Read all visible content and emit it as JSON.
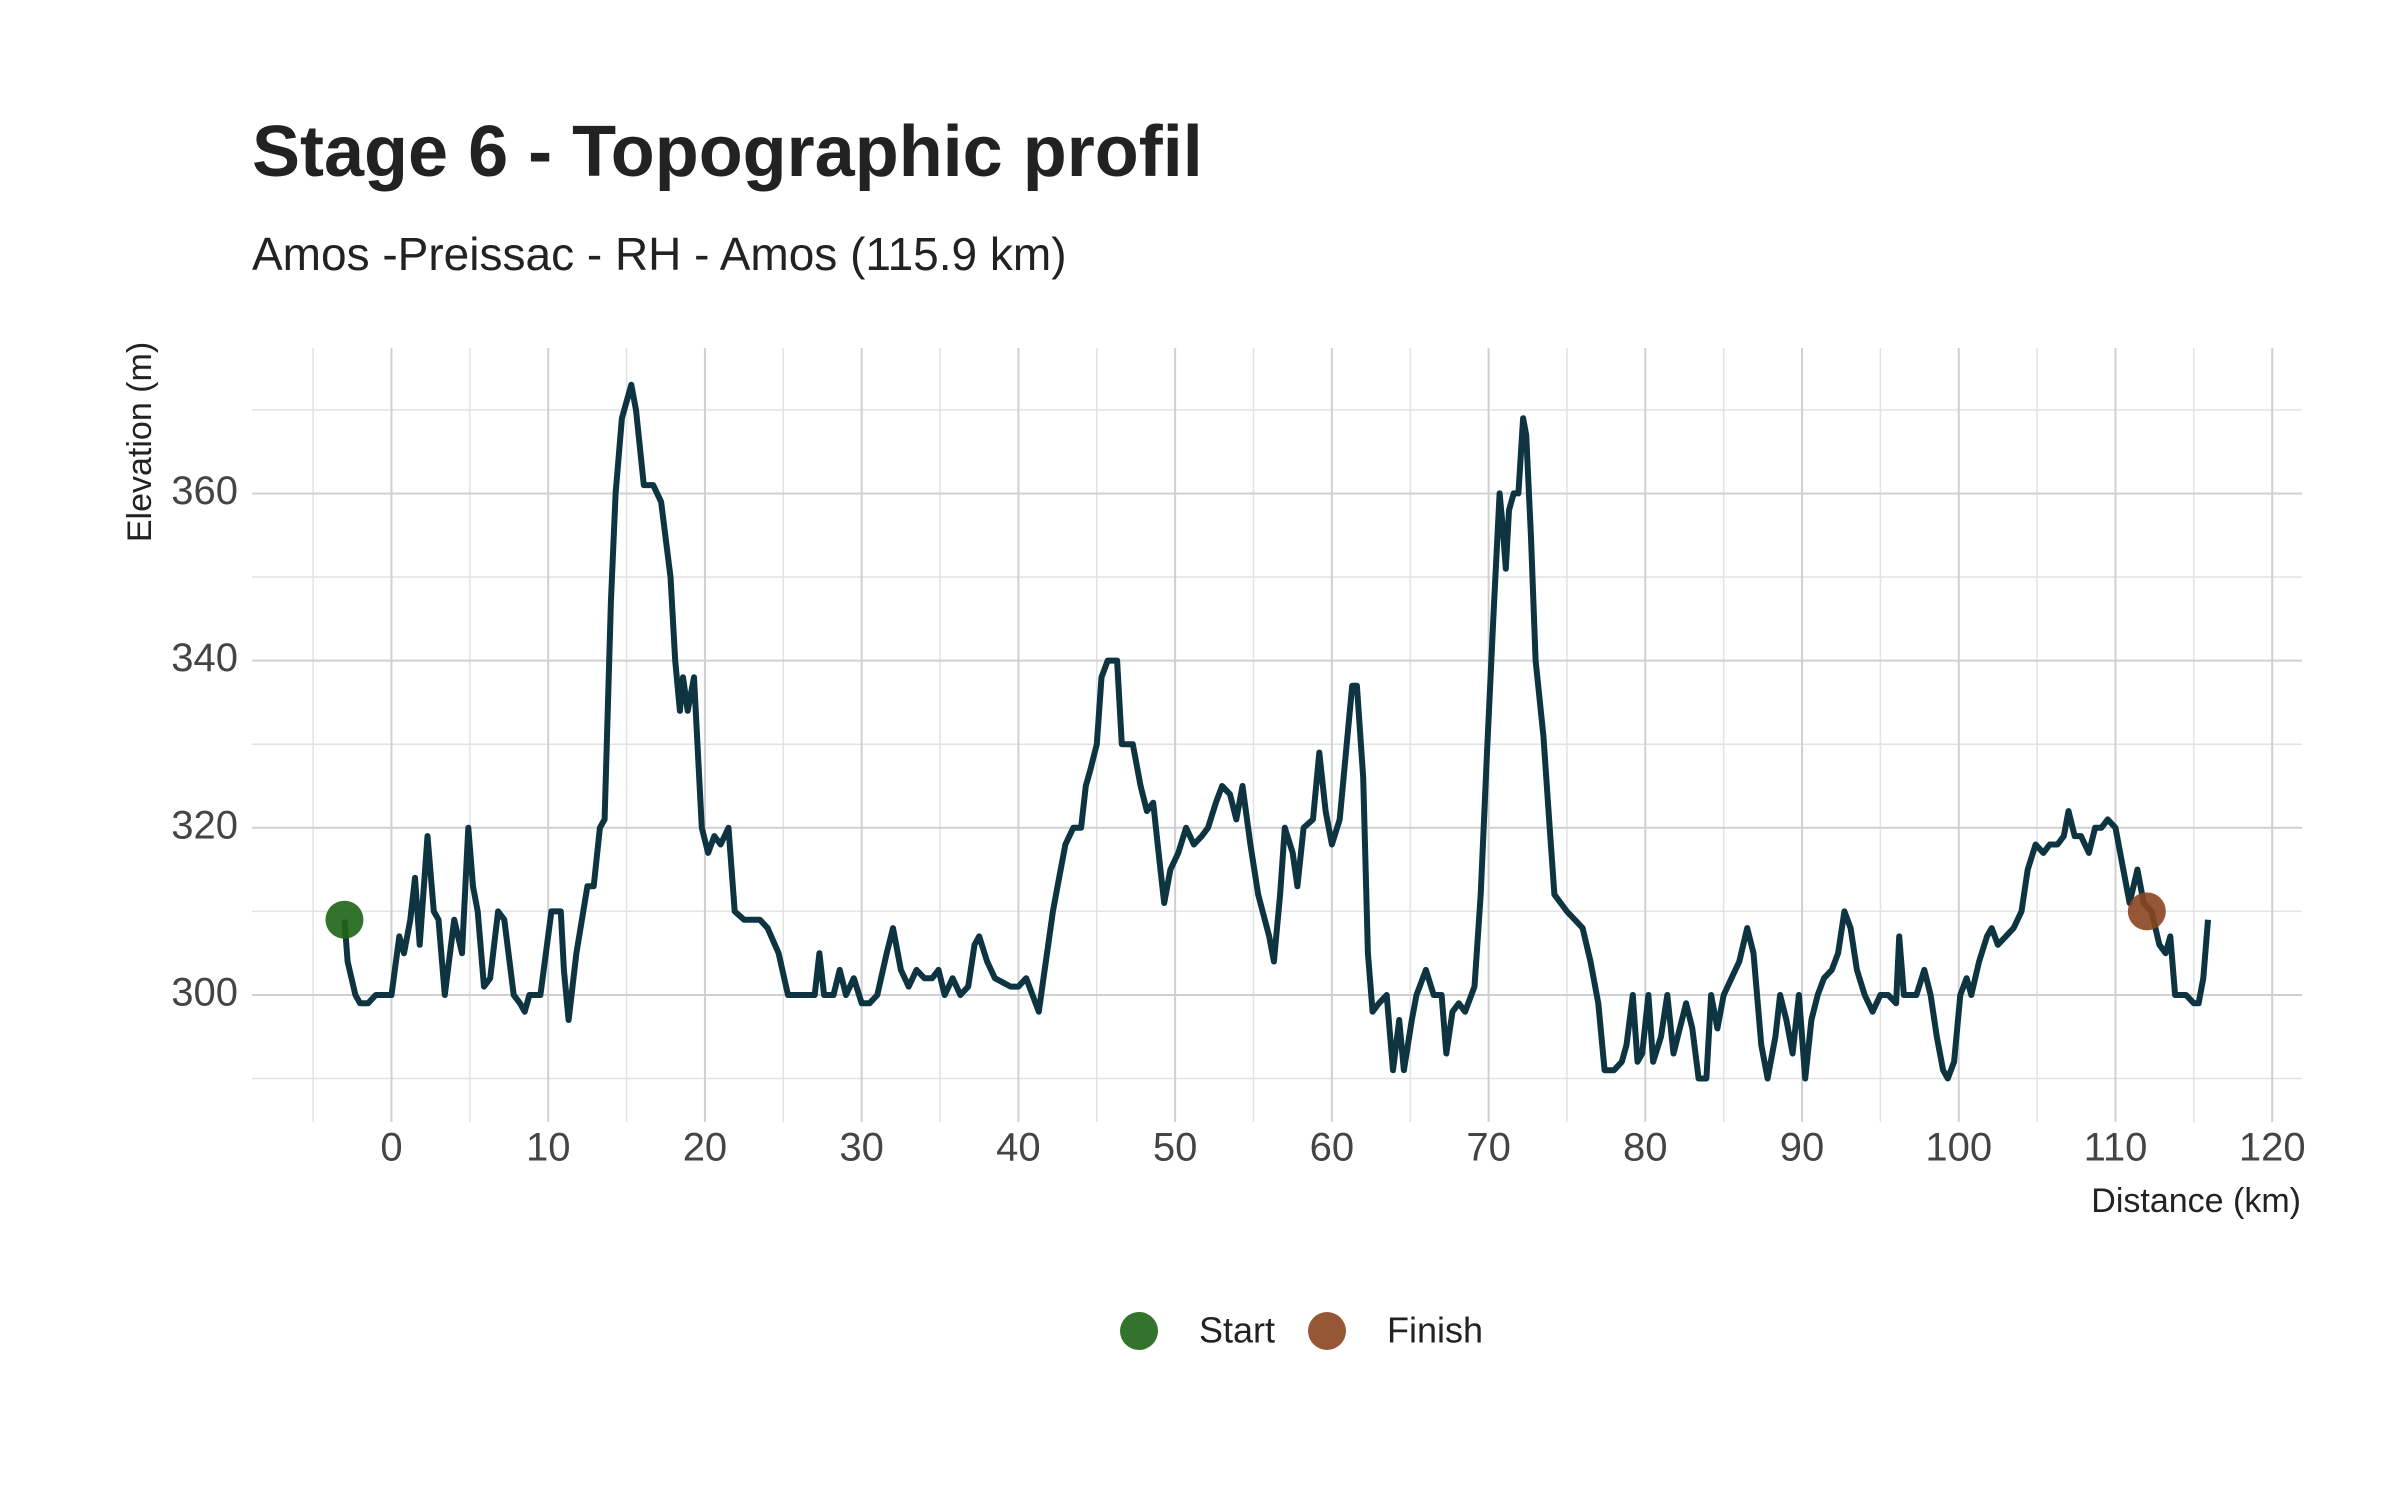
{
  "chart_data": {
    "type": "line",
    "title": "Stage 6 - Topographic profil",
    "subtitle": "Amos -Preissac - RH - Amos (115.9 km)",
    "x_label": "Distance (km)",
    "y_label": "Elevation (m)",
    "xlim": [
      -8.9,
      121.9
    ],
    "ylim": [
      284.8,
      377.4
    ],
    "xticks": [
      0,
      10,
      20,
      30,
      40,
      50,
      60,
      70,
      80,
      90,
      100,
      110,
      120
    ],
    "yticks": [
      300,
      320,
      340,
      360
    ],
    "xminor": [
      -5,
      5,
      15,
      25,
      35,
      45,
      55,
      65,
      75,
      85,
      95,
      105,
      115
    ],
    "yminor": [
      290,
      310,
      330,
      350,
      370
    ],
    "grid": true,
    "legend_position": "bottom",
    "x": [
      -3,
      -2.8,
      -2.3,
      -2,
      -1.5,
      -1,
      0,
      0.5,
      0.8,
      1.2,
      1.5,
      1.8,
      2.3,
      2.7,
      3,
      3.4,
      4,
      4.5,
      4.9,
      5.2,
      5.5,
      5.9,
      6.3,
      6.8,
      7.2,
      7.8,
      8.2,
      8.5,
      8.8,
      9.5,
      10.2,
      10.8,
      11,
      11.3,
      11.8,
      12.5,
      12.9,
      13.3,
      13.6,
      14,
      14.3,
      14.7,
      15,
      15.3,
      15.6,
      16.1,
      16.7,
      17.2,
      17.8,
      18.1,
      18.4,
      18.6,
      18.9,
      19.3,
      19.8,
      20.2,
      20.6,
      21,
      21.5,
      21.9,
      22.5,
      23.5,
      24,
      24.7,
      25.3,
      26.2,
      27,
      27.3,
      27.6,
      28.2,
      28.6,
      29,
      29.5,
      30,
      30.5,
      31,
      31.6,
      32,
      32.5,
      33,
      33.5,
      34,
      34.5,
      34.9,
      35.3,
      35.8,
      36.3,
      36.8,
      37.2,
      37.5,
      38,
      38.5,
      39.5,
      40,
      40.5,
      40.9,
      41.3,
      41.6,
      42.2,
      42.6,
      43,
      43.5,
      44,
      44.3,
      44.6,
      45,
      45.3,
      45.7,
      46.3,
      46.6,
      47.3,
      47.8,
      48.2,
      48.6,
      49,
      49.3,
      49.7,
      50.2,
      50.7,
      51.2,
      51.7,
      52.1,
      52.6,
      53,
      53.5,
      53.9,
      54.3,
      54.8,
      55.3,
      56,
      56.3,
      56.7,
      57,
      57.5,
      57.8,
      58.2,
      58.8,
      59.2,
      59.6,
      60,
      60.5,
      61,
      61.3,
      61.6,
      62,
      62.3,
      62.6,
      63,
      63.5,
      63.9,
      64.3,
      64.6,
      65.1,
      65.4,
      66,
      66.5,
      67,
      67.3,
      67.7,
      68.1,
      68.5,
      69.1,
      69.5,
      69.9,
      70.3,
      70.7,
      70.9,
      71.1,
      71.3,
      71.6,
      71.9,
      72.2,
      72.4,
      72.7,
      73,
      73.5,
      73.9,
      74.2,
      74.6,
      75,
      75.5,
      76,
      76.5,
      77,
      77.4,
      78,
      78.5,
      78.8,
      79.2,
      79.5,
      79.8,
      80.2,
      80.5,
      81,
      81.4,
      81.8,
      82.2,
      82.6,
      83,
      83.4,
      83.9,
      84.2,
      84.6,
      85,
      85.5,
      86,
      86.5,
      86.9,
      87.4,
      87.8,
      88.3,
      88.6,
      89,
      89.4,
      89.8,
      90.2,
      90.6,
      91,
      91.4,
      91.9,
      92.3,
      92.7,
      93.1,
      93.5,
      94,
      94.5,
      95,
      95.5,
      96,
      96.2,
      96.5,
      97.3,
      97.8,
      98.2,
      98.6,
      99,
      99.3,
      99.7,
      100.1,
      100.5,
      100.8,
      101.3,
      101.8,
      102.1,
      102.5,
      103,
      103.5,
      104,
      104.4,
      104.9,
      105.4,
      105.8,
      106.3,
      106.7,
      107,
      107.4,
      107.8,
      108.3,
      108.7,
      109.1,
      109.5,
      110,
      110.5,
      110.9,
      111.4,
      111.8,
      112.3,
      112.8,
      113.2,
      113.5,
      113.8,
      114.5,
      115,
      115.3,
      115.6,
      115.9
    ],
    "series": [
      {
        "color": "#0d3440",
        "values": [
          309,
          304,
          300,
          299,
          299,
          300,
          300,
          307,
          305,
          309,
          314,
          306,
          319,
          310,
          309,
          300,
          309,
          305,
          320,
          313,
          310,
          301,
          302,
          310,
          309,
          300,
          299,
          298,
          300,
          300,
          310,
          310,
          303,
          297,
          305,
          313,
          313,
          320,
          321,
          347,
          360,
          369,
          371,
          373,
          370,
          361,
          361,
          359,
          350,
          340,
          334,
          338,
          334,
          338,
          320,
          317,
          319,
          318,
          320,
          310,
          309,
          309,
          308,
          305,
          300,
          300,
          300,
          305,
          300,
          300,
          303,
          300,
          302,
          299,
          299,
          300,
          305,
          308,
          303,
          301,
          303,
          302,
          302,
          303,
          300,
          302,
          300,
          301,
          306,
          307,
          304,
          302,
          301,
          301,
          302,
          300,
          298,
          302,
          310,
          314,
          318,
          320,
          320,
          325,
          327,
          330,
          338,
          340,
          340,
          330,
          330,
          325,
          322,
          323,
          316,
          311,
          315,
          317,
          320,
          318,
          319,
          320,
          323,
          325,
          324,
          321,
          325,
          318,
          312,
          307,
          304,
          312,
          320,
          317,
          313,
          320,
          321,
          329,
          322,
          318,
          321,
          331,
          337,
          337,
          326,
          305,
          298,
          299,
          300,
          291,
          297,
          291,
          297,
          300,
          303,
          300,
          300,
          293,
          298,
          299,
          298,
          301,
          312,
          329,
          345,
          360,
          356,
          351,
          358,
          360,
          360,
          369,
          367,
          355,
          340,
          331,
          320,
          312,
          311,
          310,
          309,
          308,
          304,
          299,
          291,
          291,
          292,
          294,
          300,
          292,
          293,
          300,
          292,
          295,
          300,
          293,
          296,
          299,
          296,
          290,
          290,
          300,
          296,
          300,
          302,
          304,
          308,
          305,
          294,
          290,
          295,
          300,
          297,
          293,
          300,
          290,
          297,
          300,
          302,
          303,
          305,
          310,
          308,
          303,
          300,
          298,
          300,
          300,
          299,
          307,
          300,
          300,
          303,
          300,
          295,
          291,
          290,
          292,
          300,
          302,
          300,
          304,
          307,
          308,
          306,
          307,
          308,
          310,
          315,
          318,
          317,
          318,
          318,
          319,
          322,
          319,
          319,
          317,
          320,
          320,
          321,
          320,
          315,
          311,
          315,
          311,
          310,
          306,
          305,
          307,
          300,
          300,
          299,
          299,
          302,
          309
        ]
      }
    ],
    "markers": [
      {
        "name": "Start",
        "color": "#1e6414",
        "x": -3,
        "y": 309
      },
      {
        "name": "Finish",
        "color": "#8b4520",
        "x": 112,
        "y": 310
      }
    ]
  }
}
